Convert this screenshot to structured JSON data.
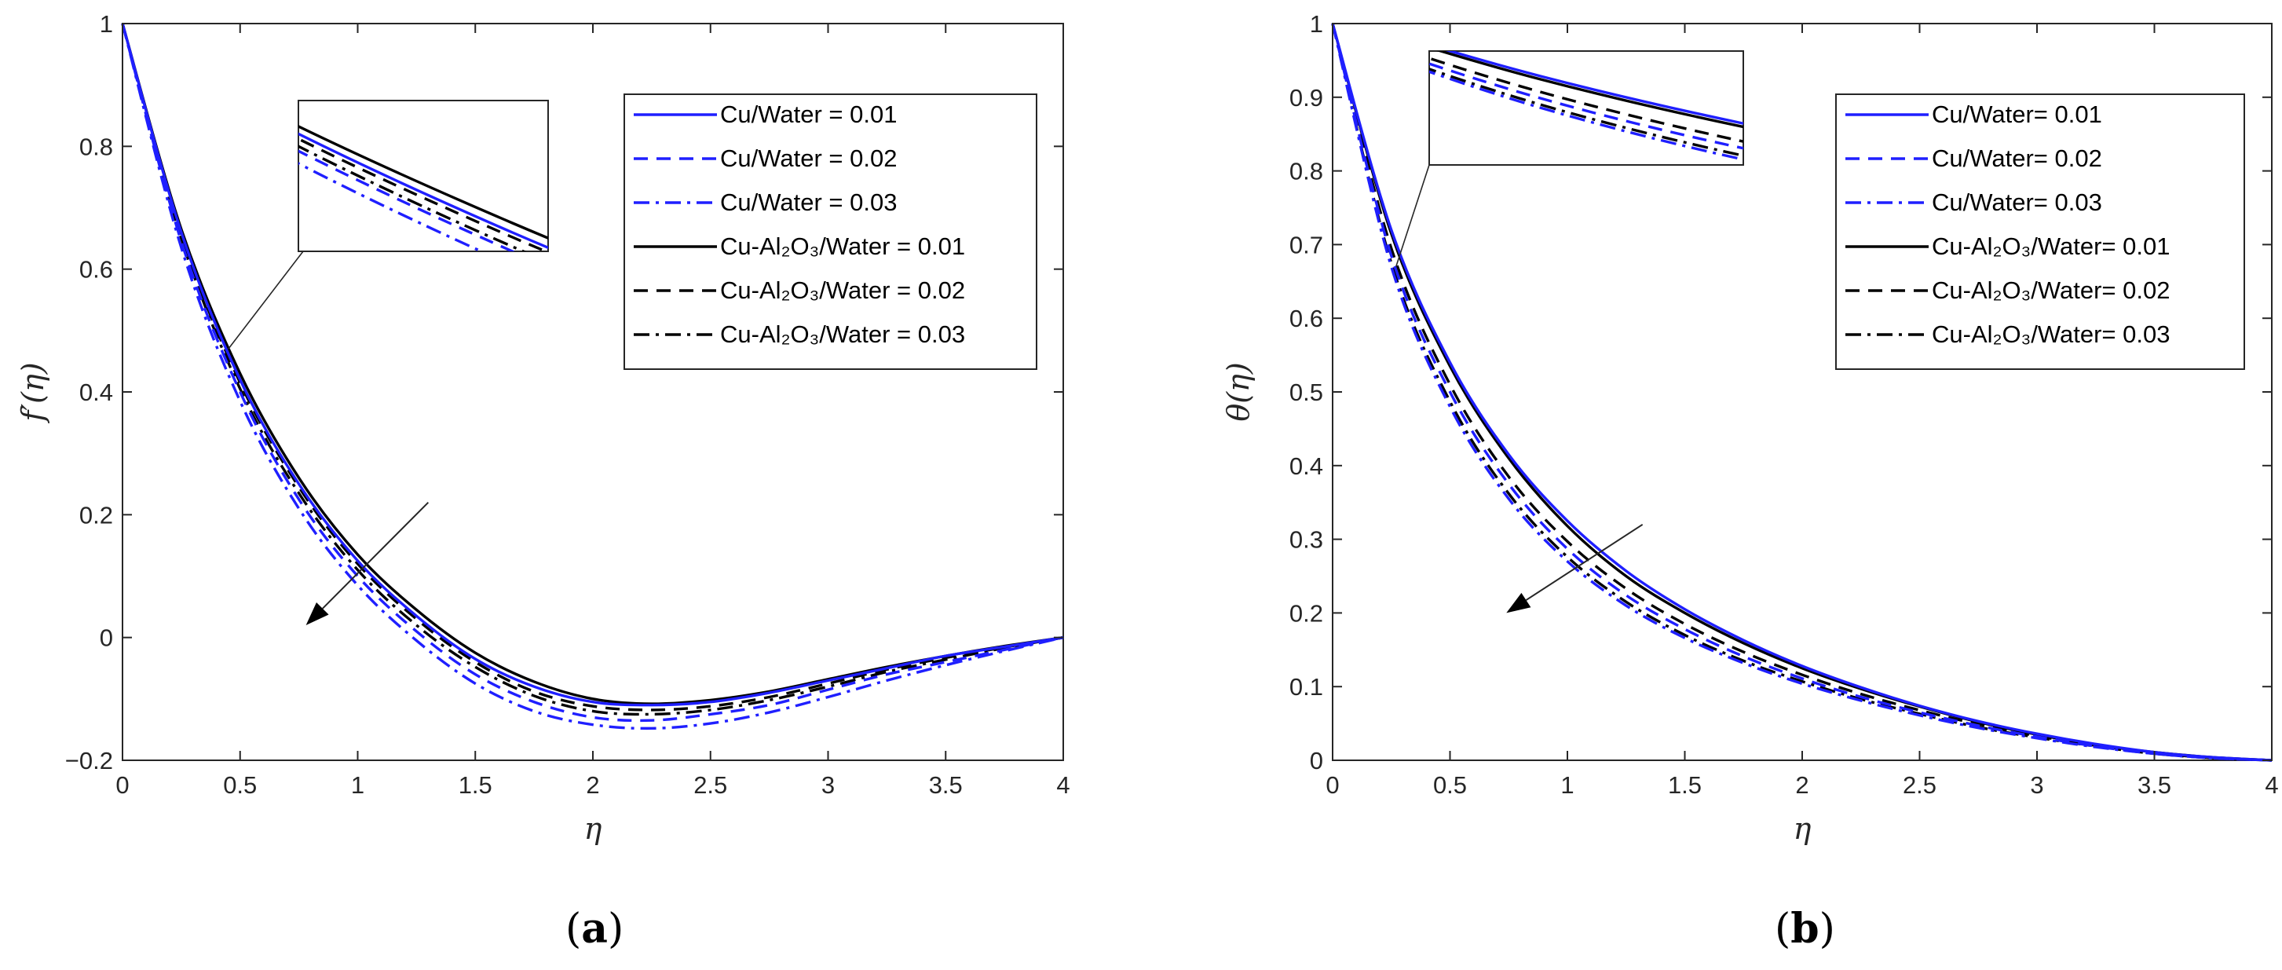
{
  "chart_data": [
    {
      "type": "line",
      "panel_label": "a",
      "xlabel": "η",
      "ylabel": "f′(η)",
      "xlim": [
        0,
        4
      ],
      "ylim": [
        -0.2,
        1
      ],
      "xticks": [
        "0",
        "0.5",
        "1",
        "1.5",
        "2",
        "2.5",
        "3",
        "3.5",
        "4"
      ],
      "yticks": [
        "−0.2",
        "0",
        "0.2",
        "0.4",
        "0.6",
        "0.8",
        "1"
      ],
      "grid": false,
      "legend_position": "top-right",
      "inset": true,
      "arrow": "decreasing",
      "x": [
        0,
        0.25,
        0.5,
        0.75,
        1,
        1.25,
        1.5,
        1.75,
        2,
        2.25,
        2.5,
        2.75,
        3,
        3.25,
        3.5,
        3.75,
        4
      ],
      "series": [
        {
          "name": "Cu/Water = 0.01",
          "color": "#1f1fff",
          "dash": "solid",
          "values": [
            1,
            0.66,
            0.42,
            0.25,
            0.125,
            0.035,
            -0.035,
            -0.08,
            -0.105,
            -0.11,
            -0.105,
            -0.09,
            -0.07,
            -0.05,
            -0.03,
            -0.015,
            0
          ]
        },
        {
          "name": "Cu/Water = 0.02",
          "color": "#1f1fff",
          "dash": "dashed",
          "values": [
            1,
            0.645,
            0.4,
            0.225,
            0.1,
            0.01,
            -0.06,
            -0.105,
            -0.13,
            -0.135,
            -0.125,
            -0.11,
            -0.085,
            -0.06,
            -0.04,
            -0.02,
            0
          ]
        },
        {
          "name": "Cu/Water = 0.03",
          "color": "#1f1fff",
          "dash": "dashdot",
          "values": [
            1,
            0.635,
            0.385,
            0.21,
            0.085,
            -0.005,
            -0.075,
            -0.12,
            -0.142,
            -0.148,
            -0.14,
            -0.122,
            -0.097,
            -0.07,
            -0.045,
            -0.022,
            0
          ]
        },
        {
          "name": "Cu-Al₂O₃/Water = 0.01",
          "color": "#000000",
          "dash": "solid",
          "values": [
            1,
            0.665,
            0.43,
            0.26,
            0.135,
            0.045,
            -0.025,
            -0.072,
            -0.1,
            -0.108,
            -0.102,
            -0.088,
            -0.068,
            -0.048,
            -0.03,
            -0.014,
            0
          ]
        },
        {
          "name": "Cu-Al₂O₃/Water = 0.02",
          "color": "#000000",
          "dash": "dashed",
          "values": [
            1,
            0.655,
            0.415,
            0.245,
            0.12,
            0.03,
            -0.04,
            -0.088,
            -0.112,
            -0.118,
            -0.112,
            -0.097,
            -0.075,
            -0.052,
            -0.033,
            -0.016,
            0
          ]
        },
        {
          "name": "Cu-Al₂O₃/Water = 0.03",
          "color": "#000000",
          "dash": "dashdot",
          "values": [
            1,
            0.65,
            0.405,
            0.235,
            0.11,
            0.02,
            -0.048,
            -0.095,
            -0.12,
            -0.125,
            -0.118,
            -0.102,
            -0.08,
            -0.056,
            -0.036,
            -0.017,
            0
          ]
        }
      ]
    },
    {
      "type": "line",
      "panel_label": "b",
      "xlabel": "η",
      "ylabel": "θ(η)",
      "xlim": [
        0,
        4
      ],
      "ylim": [
        0,
        1
      ],
      "xticks": [
        "0",
        "0.5",
        "1",
        "1.5",
        "2",
        "2.5",
        "3",
        "3.5",
        "4"
      ],
      "yticks": [
        "0",
        "0.1",
        "0.2",
        "0.3",
        "0.4",
        "0.5",
        "0.6",
        "0.7",
        "0.8",
        "0.9",
        "1"
      ],
      "grid": false,
      "legend_position": "top-right",
      "inset": true,
      "arrow": "decreasing",
      "x": [
        0,
        0.25,
        0.5,
        0.75,
        1,
        1.25,
        1.5,
        1.75,
        2,
        2.25,
        2.5,
        2.75,
        3,
        3.25,
        3.5,
        3.75,
        4
      ],
      "series": [
        {
          "name": "Cu/Water= 0.01",
          "color": "#1f1fff",
          "dash": "solid",
          "values": [
            1,
            0.72,
            0.54,
            0.415,
            0.325,
            0.257,
            0.205,
            0.163,
            0.128,
            0.099,
            0.074,
            0.053,
            0.036,
            0.022,
            0.011,
            0.004,
            0
          ]
        },
        {
          "name": "Cu/Water= 0.02",
          "color": "#1f1fff",
          "dash": "dashed",
          "values": [
            1,
            0.685,
            0.5,
            0.375,
            0.287,
            0.224,
            0.178,
            0.141,
            0.111,
            0.086,
            0.065,
            0.047,
            0.032,
            0.019,
            0.009,
            0.003,
            0
          ]
        },
        {
          "name": "Cu/Water= 0.03",
          "color": "#1f1fff",
          "dash": "dashdot",
          "values": [
            1,
            0.67,
            0.48,
            0.355,
            0.27,
            0.21,
            0.166,
            0.132,
            0.104,
            0.081,
            0.061,
            0.044,
            0.03,
            0.018,
            0.009,
            0.003,
            0
          ]
        },
        {
          "name": "Cu-Al₂O₃/Water= 0.01",
          "color": "#000000",
          "dash": "solid",
          "values": [
            1,
            0.715,
            0.535,
            0.41,
            0.318,
            0.25,
            0.2,
            0.159,
            0.125,
            0.097,
            0.073,
            0.052,
            0.035,
            0.021,
            0.011,
            0.004,
            0
          ]
        },
        {
          "name": "Cu-Al₂O₃/Water= 0.02",
          "color": "#000000",
          "dash": "dashed",
          "values": [
            1,
            0.695,
            0.51,
            0.385,
            0.297,
            0.233,
            0.185,
            0.147,
            0.116,
            0.09,
            0.068,
            0.049,
            0.033,
            0.02,
            0.01,
            0.003,
            0
          ]
        },
        {
          "name": "Cu-Al₂O₃/Water= 0.03",
          "color": "#000000",
          "dash": "dashdot",
          "values": [
            1,
            0.675,
            0.487,
            0.362,
            0.276,
            0.215,
            0.17,
            0.135,
            0.107,
            0.083,
            0.063,
            0.045,
            0.031,
            0.019,
            0.009,
            0.003,
            0
          ]
        }
      ]
    }
  ]
}
